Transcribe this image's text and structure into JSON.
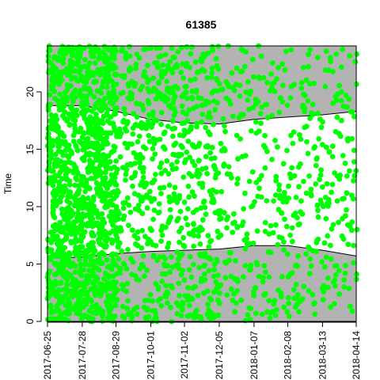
{
  "chart_data": {
    "type": "scatter",
    "title": "61385",
    "xlabel": "",
    "ylabel": "Time",
    "x_type": "date",
    "xlim": [
      "2017-06-25",
      "2018-04-14"
    ],
    "ylim": [
      0,
      24
    ],
    "x_ticks": [
      "2017-06-25",
      "2017-07-28",
      "2017-08-29",
      "2017-10-01",
      "2017-11-02",
      "2017-12-05",
      "2018-01-07",
      "2018-02-08",
      "2018-03-13",
      "2018-04-14"
    ],
    "y_ticks": [
      0,
      5,
      10,
      15,
      20
    ],
    "grid": false,
    "legend": "none",
    "colors": {
      "points": "#00ff00",
      "night_band": "#b3b3b3",
      "day_band": "#ffffff",
      "boundary_line": "#000000"
    },
    "night_boundaries": {
      "dates": [
        "2017-06-25",
        "2017-07-28",
        "2017-08-29",
        "2017-10-01",
        "2017-11-02",
        "2017-12-05",
        "2018-01-07",
        "2018-02-08",
        "2018-03-13",
        "2018-04-14"
      ],
      "lower": [
        5.5,
        5.6,
        5.9,
        6.1,
        6.2,
        6.3,
        6.6,
        6.6,
        6.2,
        5.7
      ],
      "upper": [
        18.8,
        18.8,
        18.3,
        17.6,
        17.3,
        17.2,
        17.6,
        17.8,
        18.0,
        18.3
      ]
    },
    "point_density": [
      [
        "2017-06-25",
        "2017-08-29",
        "very high"
      ],
      [
        "2017-08-29",
        "2017-12-05",
        "high"
      ],
      [
        "2017-12-05",
        "2018-04-14",
        "moderate"
      ]
    ],
    "diagonal_gap": {
      "from": [
        "2017-06-28",
        19.5
      ],
      "to": [
        "2017-08-26",
        7.8
      ]
    },
    "sample_points": [
      [
        "2017-06-25",
        2.0
      ],
      [
        "2017-06-27",
        12.5
      ],
      [
        "2017-06-30",
        20.8
      ],
      [
        "2017-07-02",
        7.3
      ],
      [
        "2017-07-05",
        15.6
      ],
      [
        "2017-07-08",
        3.4
      ],
      [
        "2017-07-10",
        22.9
      ],
      [
        "2017-07-13",
        9.8
      ],
      [
        "2017-07-16",
        17.1
      ],
      [
        "2017-07-19",
        1.2
      ],
      [
        "2017-07-22",
        13.4
      ],
      [
        "2017-07-25",
        21.7
      ],
      [
        "2017-07-28",
        6.5
      ],
      [
        "2017-07-31",
        18.9
      ],
      [
        "2017-08-03",
        10.2
      ],
      [
        "2017-08-06",
        23.1
      ],
      [
        "2017-08-09",
        4.7
      ],
      [
        "2017-08-12",
        14.8
      ],
      [
        "2017-08-15",
        19.9
      ],
      [
        "2017-08-18",
        8.6
      ],
      [
        "2017-08-21",
        2.9
      ],
      [
        "2017-08-24",
        16.4
      ],
      [
        "2017-08-27",
        11.3
      ],
      [
        "2017-08-30",
        21.5
      ],
      [
        "2017-09-03",
        7.9
      ],
      [
        "2017-09-08",
        13.2
      ],
      [
        "2017-09-13",
        4.1
      ],
      [
        "2017-09-18",
        17.8
      ],
      [
        "2017-09-23",
        9.4
      ],
      [
        "2017-09-28",
        22.3
      ],
      [
        "2017-10-03",
        12.1
      ],
      [
        "2017-10-08",
        1.8
      ],
      [
        "2017-10-13",
        15.2
      ],
      [
        "2017-10-18",
        6.8
      ],
      [
        "2017-10-23",
        19.4
      ],
      [
        "2017-10-28",
        10.7
      ],
      [
        "2017-11-02",
        3.6
      ],
      [
        "2017-11-07",
        14.3
      ],
      [
        "2017-11-12",
        21.1
      ],
      [
        "2017-11-17",
        8.2
      ],
      [
        "2017-11-22",
        16.9
      ],
      [
        "2017-11-27",
        5.4
      ],
      [
        "2017-12-02",
        12.8
      ],
      [
        "2017-12-07",
        20.2
      ],
      [
        "2017-12-13",
        9.1
      ],
      [
        "2017-12-19",
        2.4
      ],
      [
        "2017-12-25",
        15.9
      ],
      [
        "2017-12-31",
        7.2
      ],
      [
        "2018-01-06",
        18.6
      ],
      [
        "2018-01-12",
        11.6
      ],
      [
        "2018-01-18",
        4.3
      ],
      [
        "2018-01-24",
        14.1
      ],
      [
        "2018-01-30",
        22.1
      ],
      [
        "2018-02-05",
        8.9
      ],
      [
        "2018-02-11",
        16.2
      ],
      [
        "2018-02-17",
        1.5
      ],
      [
        "2018-02-23",
        12.2
      ],
      [
        "2018-03-01",
        20.7
      ],
      [
        "2018-03-07",
        6.1
      ],
      [
        "2018-03-13",
        15.4
      ],
      [
        "2018-03-19",
        10.3
      ],
      [
        "2018-03-25",
        3.1
      ],
      [
        "2018-03-31",
        17.5
      ],
      [
        "2018-04-06",
        8.4
      ],
      [
        "2018-04-12",
        13.9
      ]
    ]
  }
}
